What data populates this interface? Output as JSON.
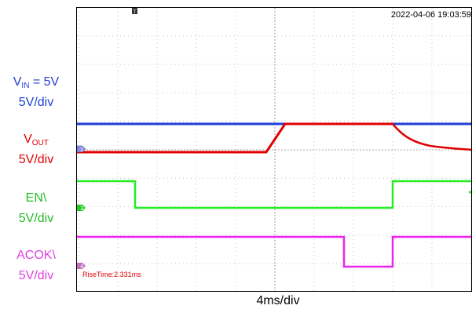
{
  "left_labels": {
    "vin": {
      "base": "V",
      "sub": "IN",
      "rest": " = 5V",
      "scale": "5V/div",
      "color": "#1f3fd6"
    },
    "vout": {
      "base": "V",
      "sub": "OUT",
      "scale": "5V/div",
      "color": "#e00000"
    },
    "en": {
      "name": "EN\\",
      "scale": "5V/div",
      "color": "#22bb22"
    },
    "acok": {
      "name": "ACOK\\",
      "scale": "5V/div",
      "color": "#e040e0"
    }
  },
  "scope": {
    "timestamp": "2022-04-06 19:03:59",
    "time_scale": "4ms/div",
    "measurement": "RiseTime:2.331ms",
    "channels": [
      {
        "id": "1",
        "color": "#e00000"
      },
      {
        "id": "3",
        "color": "#22bb22"
      },
      {
        "id": "4",
        "color": "#e040e0"
      }
    ],
    "trace_colors": {
      "vin": "#1f3fd6",
      "vout": "#e00000",
      "en": "#22ee22",
      "acok": "#ee22ee"
    }
  }
}
